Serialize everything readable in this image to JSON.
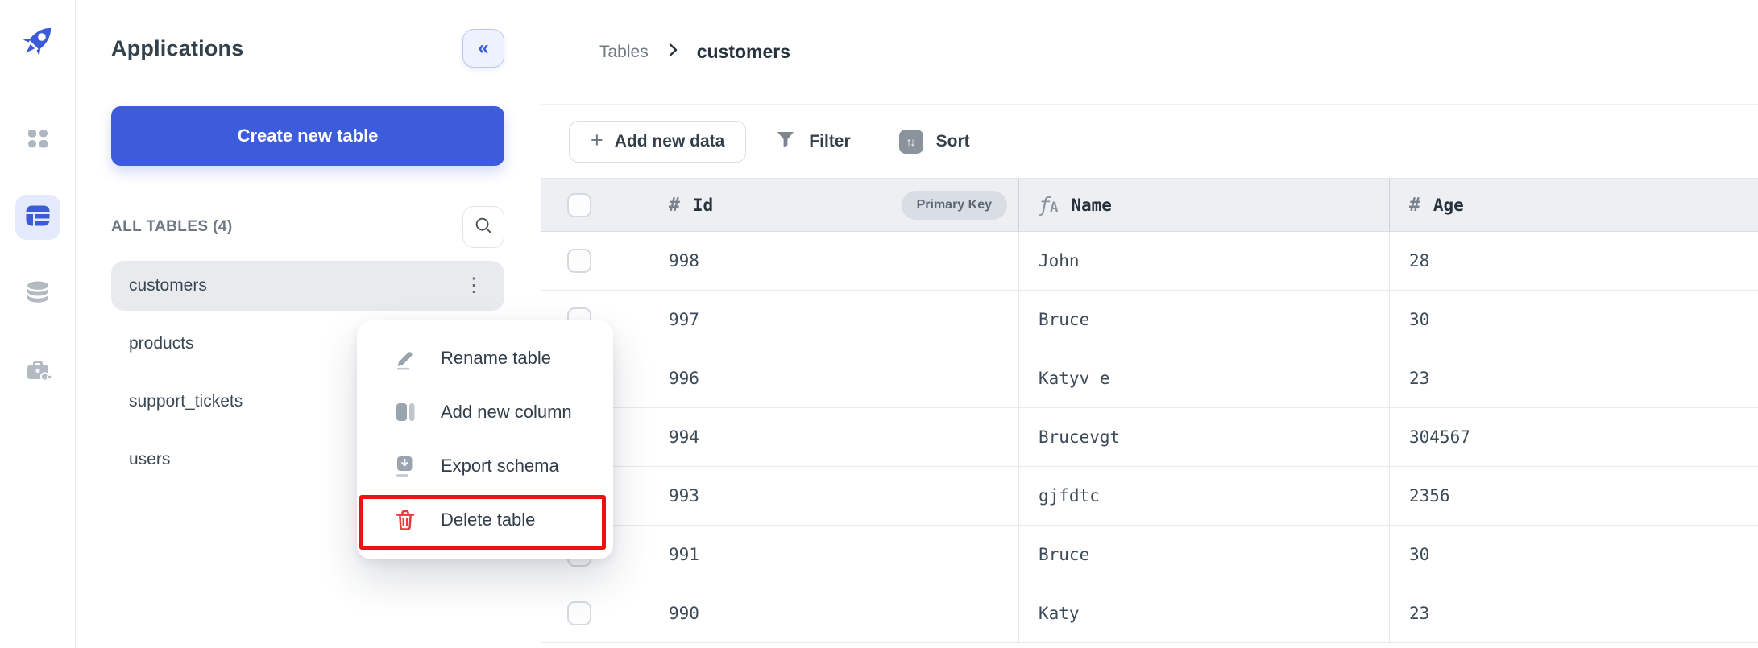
{
  "colors": {
    "accent_blue": "#3d5cdb",
    "danger_red": "#e5393f",
    "annotation_red": "#ee1111"
  },
  "rail": {
    "logo_icon": "rocket-icon",
    "items": [
      {
        "icon": "apps-grid",
        "active": false
      },
      {
        "icon": "table",
        "active": true
      },
      {
        "icon": "database",
        "active": false
      },
      {
        "icon": "toolbox",
        "active": false
      }
    ]
  },
  "sidebar": {
    "title": "Applications",
    "collapse_icon": "«",
    "create_button_label": "Create new table",
    "section_label": "ALL TABLES (4)",
    "kebab_icon": "⋮",
    "tables": [
      {
        "name": "customers",
        "selected": true
      },
      {
        "name": "products"
      },
      {
        "name": "support_tickets"
      },
      {
        "name": "users"
      }
    ]
  },
  "context_menu": {
    "items": [
      {
        "label": "Rename table",
        "icon": "pencil"
      },
      {
        "label": "Add new column",
        "icon": "column"
      },
      {
        "label": "Export schema",
        "icon": "export"
      },
      {
        "label": "Delete table",
        "icon": "trash",
        "danger": true,
        "highlighted": true
      }
    ]
  },
  "breadcrumb": {
    "parent": "Tables",
    "current": "customers"
  },
  "toolbar": {
    "add_button_label": "Add new data",
    "plus_icon": "+",
    "filter_label": "Filter",
    "sort_label": "Sort",
    "sort_icon": "↑↓"
  },
  "data_table": {
    "columns": [
      {
        "label": "Id",
        "type_icon": "number",
        "badge": "Primary Key"
      },
      {
        "label": "Name",
        "type_icon": "text"
      },
      {
        "label": "Age",
        "type_icon": "number"
      }
    ],
    "rows": [
      [
        "998",
        "John",
        "28"
      ],
      [
        "997",
        "Bruce",
        "30"
      ],
      [
        "996",
        "Katyv e",
        "23"
      ],
      [
        "994",
        "Brucevgt",
        "304567"
      ],
      [
        "993",
        "gjfdtc",
        "2356"
      ],
      [
        "991",
        "Bruce",
        "30"
      ],
      [
        "990",
        "Katy",
        "23"
      ]
    ]
  }
}
